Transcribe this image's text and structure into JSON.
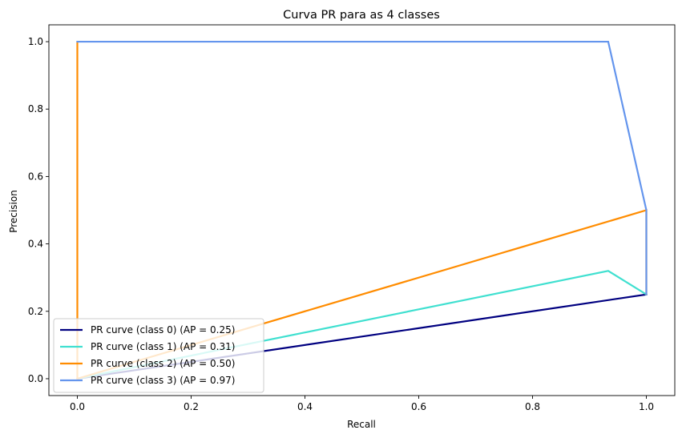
{
  "chart_data": {
    "type": "line",
    "title": "Curva PR para as 4 classes",
    "xlabel": "Recall",
    "ylabel": "Precision",
    "xlim": [
      -0.05,
      1.05
    ],
    "ylim": [
      -0.05,
      1.05
    ],
    "xticks": [
      0.0,
      0.2,
      0.4,
      0.6,
      0.8,
      1.0
    ],
    "yticks": [
      0.0,
      0.2,
      0.4,
      0.6,
      0.8,
      1.0
    ],
    "xtick_labels": [
      "0.0",
      "0.2",
      "0.4",
      "0.6",
      "0.8",
      "1.0"
    ],
    "ytick_labels": [
      "0.0",
      "0.2",
      "0.4",
      "0.6",
      "0.8",
      "1.0"
    ],
    "grid": false,
    "legend_position": "lower-left",
    "series": [
      {
        "name": "PR curve (class 0) (AP = 0.25)",
        "color": "#000080",
        "x": [
          1.0,
          1.0,
          0.0
        ],
        "y": [
          0.25,
          0.25,
          0.0
        ]
      },
      {
        "name": "PR curve (class 1) (AP = 0.31)",
        "color": "#40e0d0",
        "x": [
          1.0,
          1.0,
          0.933,
          0.0
        ],
        "y": [
          0.25,
          0.25,
          0.32,
          0.0
        ]
      },
      {
        "name": "PR curve (class 2) (AP = 0.50)",
        "color": "#ff8c00",
        "x": [
          1.0,
          1.0,
          0.0,
          0.0
        ],
        "y": [
          0.25,
          0.5,
          0.0,
          1.0
        ]
      },
      {
        "name": "PR curve (class 3) (AP = 0.97)",
        "color": "#6495ed",
        "x": [
          1.0,
          1.0,
          0.933,
          0.0
        ],
        "y": [
          0.25,
          0.5,
          1.0,
          1.0
        ]
      }
    ]
  }
}
